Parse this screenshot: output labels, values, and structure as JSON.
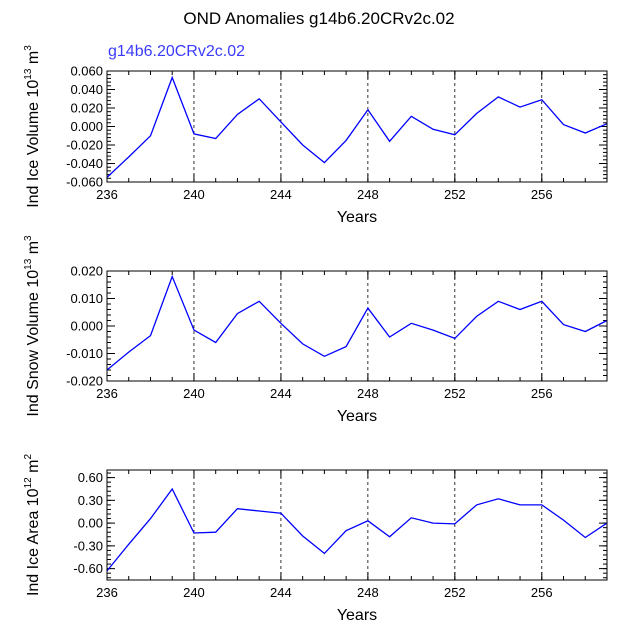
{
  "title": "OND Anomalies g14b6.20CRv2c.02",
  "chart_data": [
    {
      "type": "line",
      "panel": "top",
      "series_label": "g14b6.20CRv2c.02",
      "ylabel": {
        "main": "Ind Ice Volume 10",
        "sup": "13",
        "tail": " m",
        "unit_sup": "3"
      },
      "xlabel": "Years",
      "xlim": [
        236,
        259
      ],
      "ylim": [
        -0.06,
        0.06
      ],
      "xticks": [
        236,
        240,
        244,
        248,
        252,
        256
      ],
      "xtick_labels": [
        "236",
        "240",
        "244",
        "248",
        "252",
        "256"
      ],
      "yticks": [
        -0.06,
        -0.04,
        -0.02,
        0.0,
        0.02,
        0.04,
        0.06
      ],
      "ytick_labels": [
        "-0.060",
        "-0.040",
        "-0.020",
        "0.000",
        "0.020",
        "0.040",
        "0.060"
      ],
      "dashed_x": [
        240,
        244,
        248,
        252,
        256
      ],
      "series": [
        {
          "name": "g14b6.20CRv2c.02",
          "color": "#0000ff",
          "x": [
            236,
            237,
            238,
            239,
            240,
            241,
            242,
            243,
            244,
            245,
            246,
            247,
            248,
            249,
            250,
            251,
            252,
            253,
            254,
            255,
            256,
            257,
            258,
            259
          ],
          "y": [
            -0.055,
            -0.033,
            -0.01,
            0.053,
            -0.008,
            -0.013,
            0.013,
            0.03,
            0.005,
            -0.02,
            -0.039,
            -0.015,
            0.018,
            -0.016,
            0.011,
            -0.003,
            -0.009,
            0.014,
            0.032,
            0.021,
            0.029,
            0.002,
            -0.007,
            0.003
          ]
        }
      ]
    },
    {
      "type": "line",
      "panel": "middle",
      "ylabel": {
        "main": "Ind Snow Volume 10",
        "sup": "13",
        "tail": " m",
        "unit_sup": "3"
      },
      "xlabel": "Years",
      "xlim": [
        236,
        259
      ],
      "ylim": [
        -0.02,
        0.02
      ],
      "xticks": [
        236,
        240,
        244,
        248,
        252,
        256
      ],
      "xtick_labels": [
        "236",
        "240",
        "244",
        "248",
        "252",
        "256"
      ],
      "yticks": [
        -0.02,
        -0.01,
        0.0,
        0.01,
        0.02
      ],
      "ytick_labels": [
        "-0.020",
        "-0.010",
        "0.000",
        "0.010",
        "0.020"
      ],
      "dashed_x": [
        240,
        244,
        248,
        252,
        256
      ],
      "series": [
        {
          "name": "snow",
          "color": "#0000ff",
          "x": [
            236,
            237,
            238,
            239,
            240,
            241,
            242,
            243,
            244,
            245,
            246,
            247,
            248,
            249,
            250,
            251,
            252,
            253,
            254,
            255,
            256,
            257,
            258,
            259
          ],
          "y": [
            -0.016,
            -0.0095,
            -0.0035,
            0.018,
            -0.0015,
            -0.006,
            0.0045,
            0.009,
            0.001,
            -0.0065,
            -0.011,
            -0.0075,
            0.0065,
            -0.004,
            0.001,
            -0.0015,
            -0.0045,
            0.0035,
            0.009,
            0.006,
            0.009,
            0.0005,
            -0.002,
            0.002
          ]
        }
      ]
    },
    {
      "type": "line",
      "panel": "bottom",
      "ylabel": {
        "main": "Ind Ice Area 10",
        "sup": "12",
        "tail": " m",
        "unit_sup": "2"
      },
      "xlabel": "Years",
      "xlim": [
        236,
        259
      ],
      "ylim": [
        -0.75,
        0.7
      ],
      "xticks": [
        236,
        240,
        244,
        248,
        252,
        256
      ],
      "xtick_labels": [
        "236",
        "240",
        "244",
        "248",
        "252",
        "256"
      ],
      "yticks": [
        -0.6,
        -0.3,
        0.0,
        0.3,
        0.6
      ],
      "ytick_labels": [
        "-0.60",
        "-0.30",
        "0.00",
        "0.30",
        "0.60"
      ],
      "dashed_x": [
        240,
        244,
        248,
        252,
        256
      ],
      "series": [
        {
          "name": "area",
          "color": "#0000ff",
          "x": [
            236,
            237,
            238,
            239,
            240,
            241,
            242,
            243,
            244,
            245,
            246,
            247,
            248,
            249,
            250,
            251,
            252,
            253,
            254,
            255,
            256,
            257,
            258,
            259
          ],
          "y": [
            -0.63,
            -0.28,
            0.06,
            0.45,
            -0.13,
            -0.12,
            0.19,
            0.16,
            0.13,
            -0.17,
            -0.4,
            -0.1,
            0.03,
            -0.18,
            0.07,
            0.0,
            -0.01,
            0.24,
            0.32,
            0.24,
            0.24,
            0.04,
            -0.19,
            0.0
          ]
        }
      ]
    }
  ]
}
